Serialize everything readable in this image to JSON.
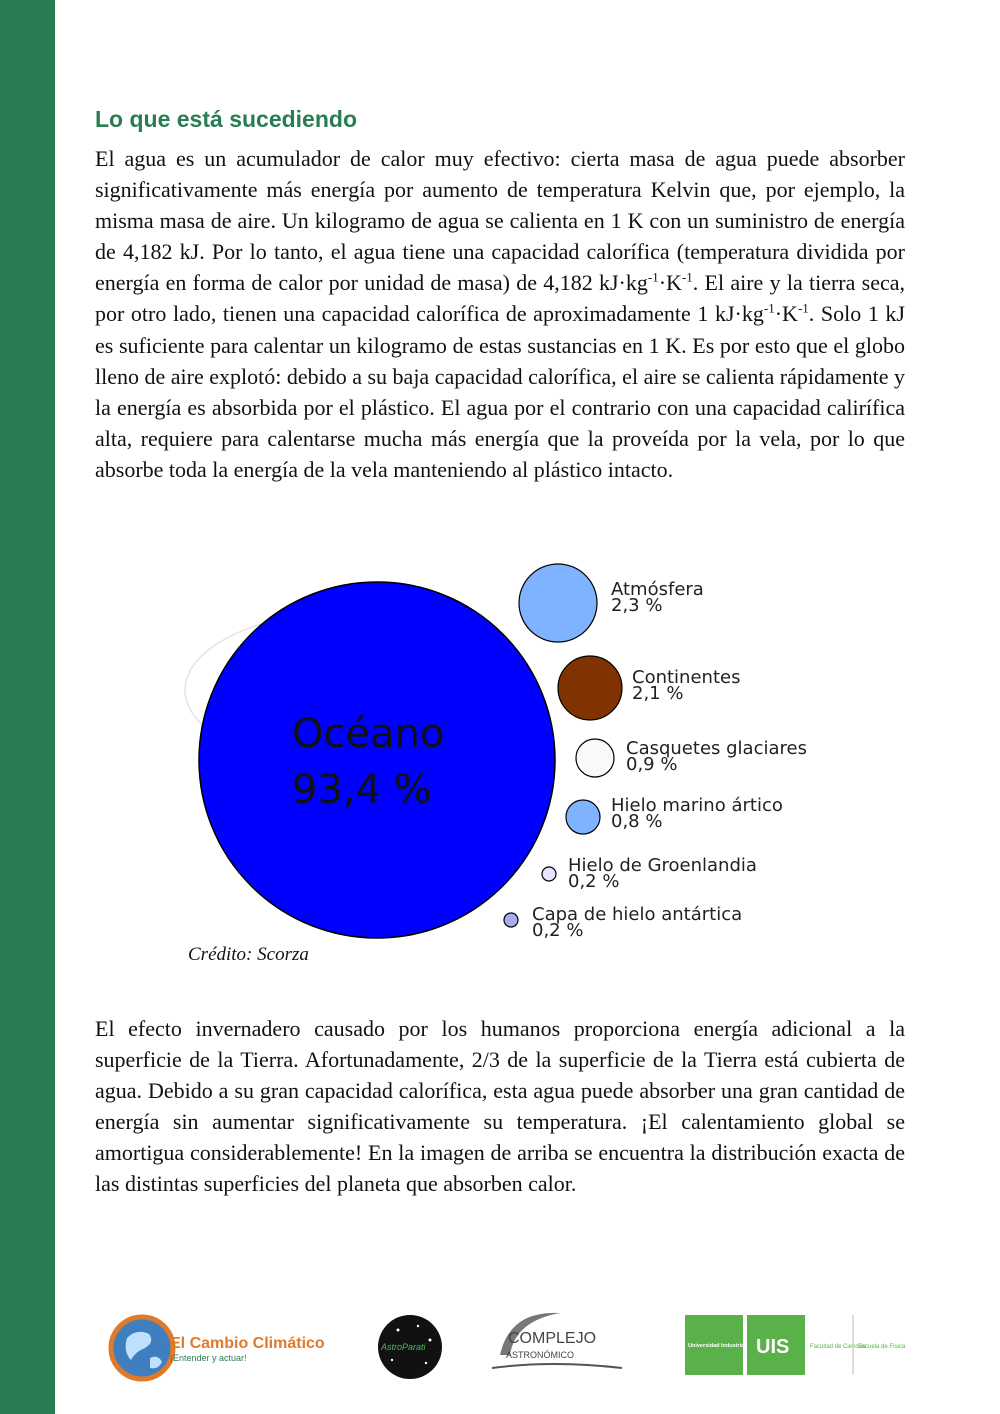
{
  "page": {
    "heading": "Lo que está sucediendo",
    "p1": {
      "a": "El agua es un acumulador de calor muy efectivo: cierta masa de agua puede absorber significativamente más energía por aumento de temperatura Kelvin que, por ejemplo, la misma masa de aire. Un kilogramo de agua se calienta en 1 K con un suministro de energía de 4,182 kJ. Por lo tanto, el agua tiene una capacidad calorífica (temperatura dividida por energía en forma de calor por unidad de masa) de 4,182 kJ·kg",
      "sup1": "-1",
      "b": "·K",
      "sup2": "-1",
      "c": ". El aire y la tierra seca, por otro lado, tienen una capacidad calorífica de aproximadamente 1 kJ·kg",
      "sup3": "-1",
      "d": "·K",
      "sup4": "-1",
      "e": ". Solo 1 kJ es suficiente para calentar un kilogramo de estas sustancias en 1 K. Es por esto que el globo lleno de aire explotó: debido a su baja capacidad calorífica, el aire se calienta rápidamente y la energía es absorbida por el plástico. El agua por el contrario con una capacidad calirífica alta, requiere para calentarse mucha más energía que la proveída por la vela, por lo que absorbe toda la energía de la vela manteniendo al plástico intacto."
    },
    "figure": {
      "ocean_name": "Océano",
      "ocean_value": "93,4 %",
      "items": [
        {
          "name": "Atmósfera",
          "value": "2,3 %",
          "color": "#80b3ff"
        },
        {
          "name": "Continentes",
          "value": "2,1 %",
          "color": "#803300"
        },
        {
          "name": "Casquetes glaciares",
          "value": "0,9 %",
          "color": "#f9f9f9"
        },
        {
          "name": "Hielo marino ártico",
          "value": "0,8 %",
          "color": "#80b3ff"
        },
        {
          "name": "Hielo de Groenlandia",
          "value": "0,2 %",
          "color": "#e5e5ff"
        },
        {
          "name": "Capa de hielo antártica",
          "value": "0,2 %",
          "color": "#aaaaee"
        }
      ],
      "ocean_color": "#0000ff",
      "credit": "Crédito: Scorza"
    },
    "p2": "El efecto invernadero causado por los humanos proporciona energía adicional a la superficie de la Tierra. Afortunadamente, 2/3 de la superficie de la Tierra está cubierta de agua. Debido a su gran capacidad calorífica, esta agua puede absorber una gran cantidad de energía sin aumentar significativamente su temperatura. ¡El calentamiento global se amortigua considerablemente! En la imagen de arriba se encuentra la distribución exacta de las distintas superficies del planeta que absorben calor.",
    "logos": {
      "cambio_title": "El Cambio Climático",
      "cambio_subtitle": "¡Entender y actuar!",
      "astro_text": "AstroParati",
      "complejo_line1": "COMPLEJO",
      "complejo_line2": "ASTRONÓMICO",
      "uis_block": "Universidad Industrial de Santander",
      "uis_mark": "UIS",
      "facultad": "Facultad de Ciencias",
      "escuela": "Escuela de Física"
    },
    "accent_color": "#2a7d52"
  }
}
